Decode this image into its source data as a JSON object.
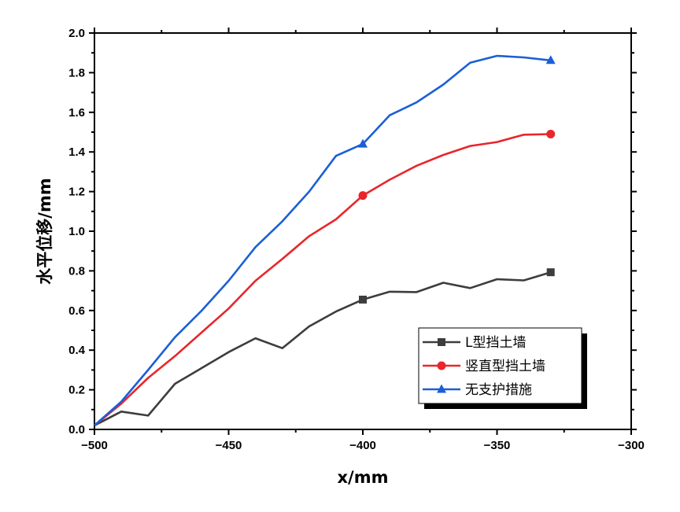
{
  "chart_data": {
    "type": "line",
    "xlabel": "x/mm",
    "ylabel": "水平位移/mm",
    "xlim": [
      -500,
      -300
    ],
    "ylim": [
      0.0,
      2.0
    ],
    "xticks": [
      -500,
      -450,
      -400,
      -350,
      -300
    ],
    "xtick_labels": [
      "−500",
      "−450",
      "−400",
      "−350",
      "−300"
    ],
    "yticks": [
      0.0,
      0.2,
      0.4,
      0.6,
      0.8,
      1.0,
      1.2,
      1.4,
      1.6,
      1.8,
      2.0
    ],
    "ytick_labels": [
      "0.0",
      "0.2",
      "0.4",
      "0.6",
      "0.8",
      "1.0",
      "1.2",
      "1.4",
      "1.6",
      "1.8",
      "2.0"
    ],
    "grid": false,
    "legend_position": "bottom-right",
    "series": [
      {
        "name": "L型挡土墙",
        "color": "#3d3d3d",
        "marker": "square",
        "marker_x": [
          -400,
          -330
        ],
        "x": [
          -500,
          -490,
          -480,
          -470,
          -460,
          -450,
          -440,
          -430,
          -420,
          -410,
          -400,
          -390,
          -380,
          -370,
          -360,
          -350,
          -340,
          -330
        ],
        "y": [
          0.02,
          0.09,
          0.07,
          0.23,
          0.31,
          0.39,
          0.46,
          0.41,
          0.52,
          0.595,
          0.655,
          0.695,
          0.693,
          0.74,
          0.713,
          0.758,
          0.752,
          0.793
        ]
      },
      {
        "name": "竖直型挡土墙",
        "color": "#e8262b",
        "marker": "circle",
        "marker_x": [
          -400,
          -330
        ],
        "x": [
          -500,
          -490,
          -480,
          -470,
          -460,
          -450,
          -440,
          -430,
          -420,
          -410,
          -400,
          -390,
          -380,
          -370,
          -360,
          -350,
          -340,
          -330
        ],
        "y": [
          0.02,
          0.13,
          0.26,
          0.37,
          0.49,
          0.61,
          0.75,
          0.86,
          0.975,
          1.06,
          1.18,
          1.26,
          1.33,
          1.385,
          1.43,
          1.45,
          1.487,
          1.49
        ]
      },
      {
        "name": "无支护措施",
        "color": "#1a5fd6",
        "marker": "triangle",
        "marker_x": [
          -400,
          -330
        ],
        "x": [
          -500,
          -490,
          -480,
          -470,
          -460,
          -450,
          -440,
          -430,
          -420,
          -410,
          -400,
          -390,
          -380,
          -370,
          -360,
          -350,
          -340,
          -330
        ],
        "y": [
          0.02,
          0.14,
          0.3,
          0.465,
          0.6,
          0.75,
          0.92,
          1.05,
          1.2,
          1.38,
          1.44,
          1.585,
          1.65,
          1.74,
          1.85,
          1.885,
          1.877,
          1.862
        ]
      }
    ]
  }
}
